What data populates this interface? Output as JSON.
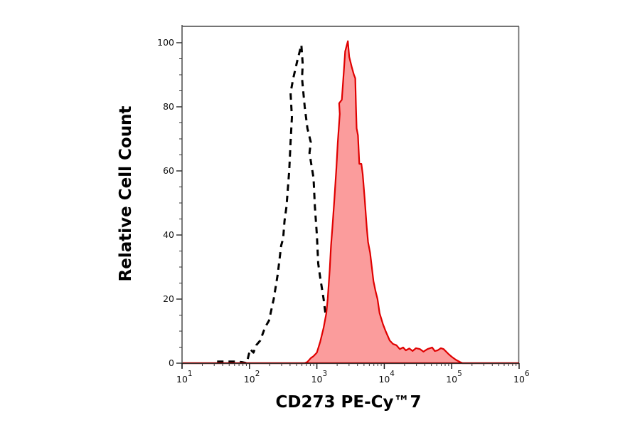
{
  "chart_data": {
    "type": "histogram",
    "title": "",
    "xlabel": "CD273 PE-Cy™7",
    "ylabel": "Relative Cell Count",
    "xscale": "log",
    "xlim_log10": [
      1,
      6
    ],
    "ylim": [
      0,
      100
    ],
    "grid": false,
    "legend": null,
    "x_ticks": [
      {
        "base": "10",
        "exp": "1",
        "log10": 1
      },
      {
        "base": "10",
        "exp": "2",
        "log10": 2
      },
      {
        "base": "10",
        "exp": "3",
        "log10": 3
      },
      {
        "base": "10",
        "exp": "4",
        "log10": 4
      },
      {
        "base": "10",
        "exp": "5",
        "log10": 5
      },
      {
        "base": "10",
        "exp": "6",
        "log10": 6
      }
    ],
    "y_ticks": [
      0,
      20,
      40,
      60,
      80,
      100
    ],
    "series": [
      {
        "name": "dashed-black-outline",
        "style": {
          "stroke": "#000000",
          "fill": "none",
          "dash": "9 7",
          "width": 3
        },
        "points_log10x_y": [
          [
            1.52,
            0.5
          ],
          [
            1.81,
            0.5
          ],
          [
            1.89,
            0.3
          ],
          [
            1.96,
            0
          ],
          [
            2.01,
            4.4
          ],
          [
            2.06,
            3.3
          ],
          [
            2.1,
            5.6
          ],
          [
            2.16,
            7.1
          ],
          [
            2.23,
            11.1
          ],
          [
            2.29,
            13.3
          ],
          [
            2.36,
            20
          ],
          [
            2.42,
            27.8
          ],
          [
            2.47,
            36.7
          ],
          [
            2.5,
            38.9
          ],
          [
            2.52,
            44.4
          ],
          [
            2.55,
            48.9
          ],
          [
            2.59,
            60
          ],
          [
            2.61,
            68.9
          ],
          [
            2.63,
            76.7
          ],
          [
            2.61,
            84.4
          ],
          [
            2.65,
            88.9
          ],
          [
            2.71,
            94.4
          ],
          [
            2.77,
            99.3
          ],
          [
            2.79,
            93.3
          ],
          [
            2.78,
            88.9
          ],
          [
            2.82,
            80
          ],
          [
            2.86,
            73.3
          ],
          [
            2.91,
            68.9
          ],
          [
            2.89,
            65.6
          ],
          [
            2.95,
            57.8
          ],
          [
            2.97,
            48.9
          ],
          [
            3.0,
            40
          ],
          [
            3.02,
            31.1
          ],
          [
            3.05,
            26.7
          ],
          [
            3.1,
            20
          ],
          [
            3.14,
            13.3
          ],
          [
            3.16,
            6.7
          ],
          [
            3.21,
            0
          ]
        ]
      },
      {
        "name": "filled-red",
        "style": {
          "stroke": "#e00000",
          "fill": "#fb9c9c",
          "baseline": "#8b0000",
          "width": 2.2
        },
        "points_log10x_y": [
          [
            1.0,
            0
          ],
          [
            2.82,
            0
          ],
          [
            2.86,
            0.4
          ],
          [
            2.91,
            1.6
          ],
          [
            2.95,
            2.2
          ],
          [
            3.0,
            3.3
          ],
          [
            3.05,
            6.7
          ],
          [
            3.1,
            11.1
          ],
          [
            3.14,
            15.6
          ],
          [
            3.16,
            20
          ],
          [
            3.19,
            28.9
          ],
          [
            3.21,
            36.7
          ],
          [
            3.23,
            42.2
          ],
          [
            3.26,
            51.1
          ],
          [
            3.29,
            61.1
          ],
          [
            3.31,
            68.9
          ],
          [
            3.34,
            77.8
          ],
          [
            3.33,
            81.1
          ],
          [
            3.37,
            82.2
          ],
          [
            3.4,
            91.1
          ],
          [
            3.42,
            97.3
          ],
          [
            3.46,
            100.5
          ],
          [
            3.48,
            95.6
          ],
          [
            3.52,
            92.2
          ],
          [
            3.55,
            90
          ],
          [
            3.57,
            88.9
          ],
          [
            3.58,
            80
          ],
          [
            3.59,
            73.3
          ],
          [
            3.61,
            71.1
          ],
          [
            3.63,
            62.2
          ],
          [
            3.66,
            62.2
          ],
          [
            3.68,
            58.9
          ],
          [
            3.71,
            51.1
          ],
          [
            3.74,
            42.2
          ],
          [
            3.76,
            37.8
          ],
          [
            3.79,
            34.4
          ],
          [
            3.84,
            25.6
          ],
          [
            3.87,
            22.5
          ],
          [
            3.9,
            20
          ],
          [
            3.93,
            15.6
          ],
          [
            3.98,
            12.2
          ],
          [
            4.02,
            10
          ],
          [
            4.08,
            7.1
          ],
          [
            4.13,
            6
          ],
          [
            4.18,
            5.6
          ],
          [
            4.23,
            4.4
          ],
          [
            4.28,
            4.9
          ],
          [
            4.32,
            4
          ],
          [
            4.37,
            4.6
          ],
          [
            4.42,
            3.8
          ],
          [
            4.47,
            4.7
          ],
          [
            4.53,
            4.4
          ],
          [
            4.58,
            3.6
          ],
          [
            4.64,
            4.4
          ],
          [
            4.71,
            4.9
          ],
          [
            4.75,
            3.8
          ],
          [
            4.79,
            4
          ],
          [
            4.84,
            4.7
          ],
          [
            4.88,
            4.4
          ],
          [
            4.95,
            2.9
          ],
          [
            5.0,
            2.0
          ],
          [
            5.06,
            1.1
          ],
          [
            5.12,
            0.4
          ],
          [
            5.16,
            0
          ],
          [
            6.0,
            0
          ]
        ]
      }
    ]
  }
}
